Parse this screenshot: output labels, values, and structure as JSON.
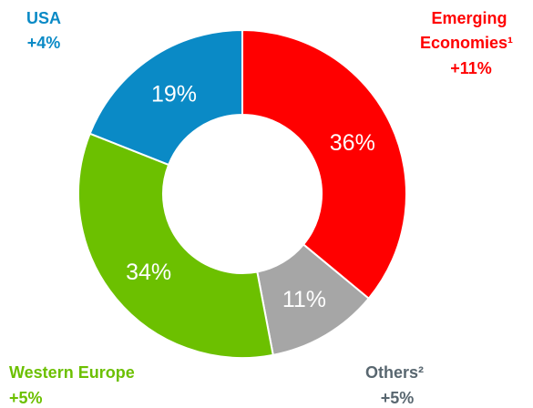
{
  "chart_data": {
    "type": "pie",
    "donut": true,
    "categories": [
      "Emerging Economies¹",
      "Others²",
      "Western Europe",
      "USA"
    ],
    "values": [
      36,
      11,
      34,
      19
    ],
    "value_labels": [
      "36%",
      "11%",
      "34%",
      "19%"
    ],
    "growth_labels": [
      "+11%",
      "+5%",
      "+5%",
      "+4%"
    ],
    "colors": [
      "#ff0000",
      "#a6a6a6",
      "#6cc000",
      "#0a8ac6"
    ],
    "start": "12 o'clock",
    "direction": "clockwise"
  }
}
